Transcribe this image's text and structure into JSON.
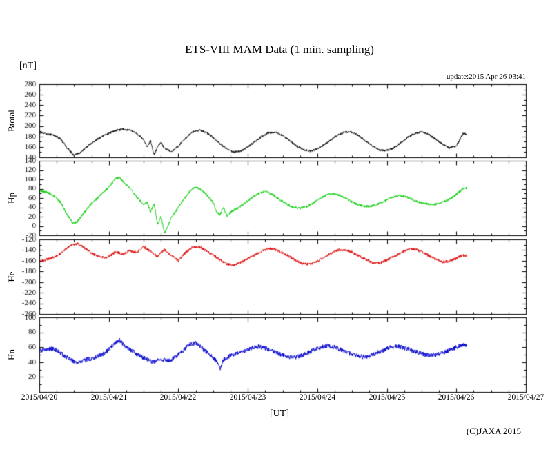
{
  "figure": {
    "title": "ETS-VIII MAM Data (1 min. sampling)",
    "y_unit": "[nT]",
    "x_label": "[UT]",
    "update_text": "update:2015 Apr 26 03:41",
    "copyright": "(C)JAXA 2015"
  },
  "chart_data": {
    "type": "line",
    "title": "ETS-VIII MAM Data (1 min. sampling)",
    "xlabel": "[UT]",
    "ylabel": "[nT]",
    "grid": false,
    "legend_position": "none",
    "x_range_days": [
      0,
      7
    ],
    "x_minor_tick_days": 0.25,
    "x_tick_labels": [
      "2015/04/20",
      "2015/04/21",
      "2015/04/22",
      "2015/04/23",
      "2015/04/24",
      "2015/04/25",
      "2015/04/26",
      "2015/04/27"
    ],
    "panels": [
      {
        "label": "Btotal",
        "color": "#000000",
        "ylim": [
          140,
          280
        ],
        "ytick_values": [
          140,
          160,
          180,
          200,
          220,
          240,
          260,
          280
        ],
        "noise_amplitude_nT": 2,
        "series_points_day_nT": [
          [
            0,
            187
          ],
          [
            0.1,
            185
          ],
          [
            0.2,
            183
          ],
          [
            0.3,
            176
          ],
          [
            0.4,
            158
          ],
          [
            0.5,
            144
          ],
          [
            0.6,
            150
          ],
          [
            0.7,
            162
          ],
          [
            0.8,
            172
          ],
          [
            0.9,
            180
          ],
          [
            1.0,
            186
          ],
          [
            1.1,
            191
          ],
          [
            1.2,
            194
          ],
          [
            1.3,
            192
          ],
          [
            1.4,
            186
          ],
          [
            1.5,
            174
          ],
          [
            1.55,
            160
          ],
          [
            1.6,
            172
          ],
          [
            1.65,
            144
          ],
          [
            1.7,
            160
          ],
          [
            1.75,
            168
          ],
          [
            1.8,
            158
          ],
          [
            1.9,
            150
          ],
          [
            2.0,
            162
          ],
          [
            2.1,
            176
          ],
          [
            2.2,
            188
          ],
          [
            2.3,
            192
          ],
          [
            2.4,
            188
          ],
          [
            2.5,
            178
          ],
          [
            2.6,
            166
          ],
          [
            2.7,
            156
          ],
          [
            2.8,
            150
          ],
          [
            2.9,
            152
          ],
          [
            3.0,
            160
          ],
          [
            3.1,
            170
          ],
          [
            3.2,
            180
          ],
          [
            3.3,
            187
          ],
          [
            3.4,
            188
          ],
          [
            3.5,
            182
          ],
          [
            3.6,
            172
          ],
          [
            3.7,
            162
          ],
          [
            3.8,
            155
          ],
          [
            3.9,
            152
          ],
          [
            4.0,
            156
          ],
          [
            4.1,
            164
          ],
          [
            4.2,
            174
          ],
          [
            4.3,
            183
          ],
          [
            4.4,
            189
          ],
          [
            4.5,
            188
          ],
          [
            4.6,
            181
          ],
          [
            4.7,
            171
          ],
          [
            4.8,
            161
          ],
          [
            4.9,
            154
          ],
          [
            5.0,
            153
          ],
          [
            5.1,
            158
          ],
          [
            5.2,
            168
          ],
          [
            5.3,
            178
          ],
          [
            5.4,
            186
          ],
          [
            5.5,
            189
          ],
          [
            5.6,
            184
          ],
          [
            5.7,
            175
          ],
          [
            5.8,
            165
          ],
          [
            5.9,
            158
          ],
          [
            6.0,
            162
          ],
          [
            6.05,
            174
          ],
          [
            6.1,
            186
          ],
          [
            6.15,
            184
          ]
        ]
      },
      {
        "label": "Hp",
        "color": "#00cc00",
        "ylim": [
          -20,
          140
        ],
        "ytick_values": [
          -20,
          0,
          20,
          40,
          60,
          80,
          100,
          120,
          140
        ],
        "noise_amplitude_nT": 2.5,
        "series_points_day_nT": [
          [
            0,
            76
          ],
          [
            0.1,
            73
          ],
          [
            0.2,
            66
          ],
          [
            0.3,
            52
          ],
          [
            0.4,
            25
          ],
          [
            0.48,
            6
          ],
          [
            0.55,
            10
          ],
          [
            0.65,
            30
          ],
          [
            0.75,
            48
          ],
          [
            0.85,
            62
          ],
          [
            0.95,
            76
          ],
          [
            1.05,
            92
          ],
          [
            1.1,
            102
          ],
          [
            1.15,
            105
          ],
          [
            1.2,
            96
          ],
          [
            1.3,
            82
          ],
          [
            1.4,
            62
          ],
          [
            1.5,
            46
          ],
          [
            1.55,
            52
          ],
          [
            1.6,
            30
          ],
          [
            1.65,
            48
          ],
          [
            1.7,
            5
          ],
          [
            1.75,
            20
          ],
          [
            1.8,
            -15
          ],
          [
            1.85,
            0
          ],
          [
            1.9,
            18
          ],
          [
            2.0,
            40
          ],
          [
            2.1,
            62
          ],
          [
            2.2,
            80
          ],
          [
            2.25,
            84
          ],
          [
            2.35,
            75
          ],
          [
            2.45,
            60
          ],
          [
            2.5,
            50
          ],
          [
            2.55,
            30
          ],
          [
            2.6,
            25
          ],
          [
            2.65,
            40
          ],
          [
            2.7,
            22
          ],
          [
            2.75,
            30
          ],
          [
            2.85,
            38
          ],
          [
            2.95,
            48
          ],
          [
            3.05,
            60
          ],
          [
            3.15,
            70
          ],
          [
            3.25,
            74
          ],
          [
            3.35,
            68
          ],
          [
            3.45,
            58
          ],
          [
            3.55,
            48
          ],
          [
            3.65,
            40
          ],
          [
            3.75,
            38
          ],
          [
            3.85,
            42
          ],
          [
            3.95,
            50
          ],
          [
            4.05,
            60
          ],
          [
            4.15,
            68
          ],
          [
            4.25,
            70
          ],
          [
            4.35,
            64
          ],
          [
            4.45,
            56
          ],
          [
            4.55,
            48
          ],
          [
            4.65,
            43
          ],
          [
            4.75,
            42
          ],
          [
            4.85,
            46
          ],
          [
            4.95,
            52
          ],
          [
            5.05,
            60
          ],
          [
            5.15,
            65
          ],
          [
            5.25,
            64
          ],
          [
            5.35,
            58
          ],
          [
            5.45,
            52
          ],
          [
            5.55,
            48
          ],
          [
            5.65,
            46
          ],
          [
            5.75,
            48
          ],
          [
            5.85,
            54
          ],
          [
            5.95,
            62
          ],
          [
            6.05,
            74
          ],
          [
            6.1,
            80
          ],
          [
            6.15,
            82
          ]
        ]
      },
      {
        "label": "He",
        "color": "#dd0000",
        "ylim": [
          -260,
          -120
        ],
        "ytick_values": [
          -260,
          -240,
          -220,
          -200,
          -180,
          -160,
          -140,
          -120
        ],
        "noise_amplitude_nT": 2.5,
        "series_points_day_nT": [
          [
            0,
            -161
          ],
          [
            0.1,
            -158
          ],
          [
            0.2,
            -154
          ],
          [
            0.3,
            -147
          ],
          [
            0.4,
            -136
          ],
          [
            0.5,
            -129
          ],
          [
            0.55,
            -128
          ],
          [
            0.65,
            -136
          ],
          [
            0.75,
            -146
          ],
          [
            0.85,
            -152
          ],
          [
            0.95,
            -155
          ],
          [
            1.05,
            -148
          ],
          [
            1.1,
            -143
          ],
          [
            1.2,
            -148
          ],
          [
            1.3,
            -141
          ],
          [
            1.4,
            -145
          ],
          [
            1.5,
            -134
          ],
          [
            1.6,
            -142
          ],
          [
            1.7,
            -152
          ],
          [
            1.8,
            -139
          ],
          [
            1.9,
            -150
          ],
          [
            2.0,
            -160
          ],
          [
            2.1,
            -145
          ],
          [
            2.2,
            -135
          ],
          [
            2.3,
            -134
          ],
          [
            2.4,
            -141
          ],
          [
            2.5,
            -149
          ],
          [
            2.6,
            -158
          ],
          [
            2.7,
            -166
          ],
          [
            2.8,
            -168
          ],
          [
            2.9,
            -163
          ],
          [
            3.0,
            -156
          ],
          [
            3.1,
            -149
          ],
          [
            3.2,
            -142
          ],
          [
            3.3,
            -137
          ],
          [
            3.4,
            -139
          ],
          [
            3.5,
            -145
          ],
          [
            3.6,
            -152
          ],
          [
            3.7,
            -160
          ],
          [
            3.8,
            -166
          ],
          [
            3.9,
            -166
          ],
          [
            4.0,
            -161
          ],
          [
            4.1,
            -153
          ],
          [
            4.2,
            -146
          ],
          [
            4.3,
            -140
          ],
          [
            4.4,
            -139
          ],
          [
            4.5,
            -144
          ],
          [
            4.6,
            -151
          ],
          [
            4.7,
            -158
          ],
          [
            4.8,
            -164
          ],
          [
            4.9,
            -164
          ],
          [
            5.0,
            -159
          ],
          [
            5.1,
            -152
          ],
          [
            5.2,
            -145
          ],
          [
            5.3,
            -139
          ],
          [
            5.4,
            -138
          ],
          [
            5.5,
            -143
          ],
          [
            5.6,
            -150
          ],
          [
            5.7,
            -157
          ],
          [
            5.8,
            -162
          ],
          [
            5.9,
            -161
          ],
          [
            6.0,
            -156
          ],
          [
            6.05,
            -152
          ],
          [
            6.1,
            -150
          ],
          [
            6.15,
            -151
          ]
        ]
      },
      {
        "label": "Hn",
        "color": "#0000cc",
        "ylim": [
          0,
          100
        ],
        "ytick_values": [
          20,
          40,
          60,
          80,
          100
        ],
        "noise_amplitude_nT": 3,
        "series_points_day_nT": [
          [
            0,
            55
          ],
          [
            0.1,
            57
          ],
          [
            0.2,
            58
          ],
          [
            0.3,
            53
          ],
          [
            0.4,
            46
          ],
          [
            0.5,
            41
          ],
          [
            0.6,
            40
          ],
          [
            0.7,
            44
          ],
          [
            0.8,
            46
          ],
          [
            0.9,
            50
          ],
          [
            1.0,
            57
          ],
          [
            1.1,
            66
          ],
          [
            1.15,
            70
          ],
          [
            1.25,
            60
          ],
          [
            1.35,
            54
          ],
          [
            1.45,
            48
          ],
          [
            1.55,
            44
          ],
          [
            1.65,
            40
          ],
          [
            1.75,
            44
          ],
          [
            1.85,
            42
          ],
          [
            1.95,
            46
          ],
          [
            2.05,
            54
          ],
          [
            2.15,
            63
          ],
          [
            2.25,
            66
          ],
          [
            2.35,
            58
          ],
          [
            2.45,
            50
          ],
          [
            2.55,
            42
          ],
          [
            2.6,
            30
          ],
          [
            2.65,
            44
          ],
          [
            2.75,
            49
          ],
          [
            2.85,
            52
          ],
          [
            2.95,
            55
          ],
          [
            3.05,
            59
          ],
          [
            3.15,
            61
          ],
          [
            3.25,
            59
          ],
          [
            3.35,
            55
          ],
          [
            3.45,
            51
          ],
          [
            3.55,
            48
          ],
          [
            3.65,
            46
          ],
          [
            3.75,
            48
          ],
          [
            3.85,
            52
          ],
          [
            3.95,
            56
          ],
          [
            4.05,
            60
          ],
          [
            4.15,
            62
          ],
          [
            4.25,
            60
          ],
          [
            4.35,
            56
          ],
          [
            4.45,
            52
          ],
          [
            4.55,
            49
          ],
          [
            4.65,
            47
          ],
          [
            4.75,
            48
          ],
          [
            4.85,
            52
          ],
          [
            4.95,
            56
          ],
          [
            5.05,
            60
          ],
          [
            5.15,
            61
          ],
          [
            5.25,
            59
          ],
          [
            5.35,
            56
          ],
          [
            5.45,
            53
          ],
          [
            5.55,
            50
          ],
          [
            5.65,
            49
          ],
          [
            5.75,
            51
          ],
          [
            5.85,
            54
          ],
          [
            5.95,
            58
          ],
          [
            6.05,
            62
          ],
          [
            6.1,
            63
          ],
          [
            6.15,
            62
          ]
        ]
      }
    ]
  }
}
